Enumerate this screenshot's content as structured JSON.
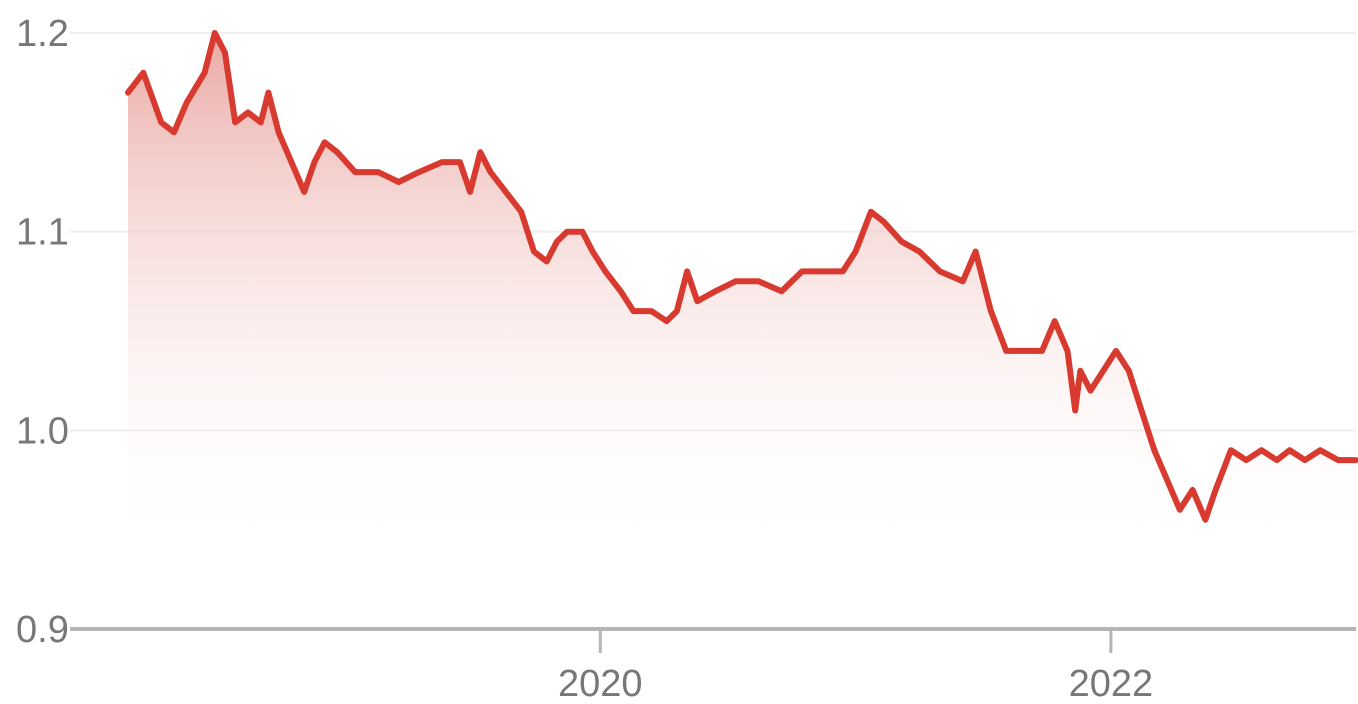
{
  "chart_data": {
    "type": "area",
    "title": "",
    "xlabel": "",
    "ylabel": "",
    "ylim": [
      0.9,
      1.2
    ],
    "xlim": [
      2018.15,
      2022.96
    ],
    "grid": true,
    "legend": "none",
    "y_ticks": [
      {
        "value": 1.2,
        "label": "1.2"
      },
      {
        "value": 1.1,
        "label": "1.1"
      },
      {
        "value": 1.0,
        "label": "1.0"
      },
      {
        "value": 0.9,
        "label": "0.9"
      }
    ],
    "x_ticks": [
      {
        "value": 2020,
        "label": "2020"
      },
      {
        "value": 2022,
        "label": "2022"
      }
    ],
    "colors": {
      "line": "#d93a30",
      "fill_top": "#e9a5a0",
      "fill_bottom": "#ffffff",
      "grid": "#eeeeee",
      "axis": "#b5b5b5",
      "tick_label": "#777777"
    },
    "series": [
      {
        "points": [
          [
            2018.15,
            1.17
          ],
          [
            2018.21,
            1.18
          ],
          [
            2018.28,
            1.155
          ],
          [
            2018.33,
            1.15
          ],
          [
            2018.38,
            1.165
          ],
          [
            2018.45,
            1.18
          ],
          [
            2018.49,
            1.2
          ],
          [
            2018.53,
            1.19
          ],
          [
            2018.57,
            1.155
          ],
          [
            2018.62,
            1.16
          ],
          [
            2018.67,
            1.155
          ],
          [
            2018.7,
            1.17
          ],
          [
            2018.74,
            1.15
          ],
          [
            2018.79,
            1.135
          ],
          [
            2018.84,
            1.12
          ],
          [
            2018.88,
            1.135
          ],
          [
            2018.92,
            1.145
          ],
          [
            2018.97,
            1.14
          ],
          [
            2019.04,
            1.13
          ],
          [
            2019.13,
            1.13
          ],
          [
            2019.21,
            1.125
          ],
          [
            2019.29,
            1.13
          ],
          [
            2019.38,
            1.135
          ],
          [
            2019.45,
            1.135
          ],
          [
            2019.49,
            1.12
          ],
          [
            2019.53,
            1.14
          ],
          [
            2019.57,
            1.13
          ],
          [
            2019.63,
            1.12
          ],
          [
            2019.69,
            1.11
          ],
          [
            2019.74,
            1.09
          ],
          [
            2019.79,
            1.085
          ],
          [
            2019.83,
            1.095
          ],
          [
            2019.87,
            1.1
          ],
          [
            2019.93,
            1.1
          ],
          [
            2019.97,
            1.09
          ],
          [
            2020.02,
            1.08
          ],
          [
            2020.08,
            1.07
          ],
          [
            2020.13,
            1.06
          ],
          [
            2020.2,
            1.06
          ],
          [
            2020.26,
            1.055
          ],
          [
            2020.3,
            1.06
          ],
          [
            2020.34,
            1.08
          ],
          [
            2020.38,
            1.065
          ],
          [
            2020.45,
            1.07
          ],
          [
            2020.53,
            1.075
          ],
          [
            2020.62,
            1.075
          ],
          [
            2020.71,
            1.07
          ],
          [
            2020.79,
            1.08
          ],
          [
            2020.86,
            1.08
          ],
          [
            2020.95,
            1.08
          ],
          [
            2021.0,
            1.09
          ],
          [
            2021.06,
            1.11
          ],
          [
            2021.11,
            1.105
          ],
          [
            2021.18,
            1.095
          ],
          [
            2021.25,
            1.09
          ],
          [
            2021.33,
            1.08
          ],
          [
            2021.42,
            1.075
          ],
          [
            2021.47,
            1.09
          ],
          [
            2021.53,
            1.06
          ],
          [
            2021.59,
            1.04
          ],
          [
            2021.65,
            1.04
          ],
          [
            2021.73,
            1.04
          ],
          [
            2021.78,
            1.055
          ],
          [
            2021.83,
            1.04
          ],
          [
            2021.86,
            1.01
          ],
          [
            2021.88,
            1.03
          ],
          [
            2021.92,
            1.02
          ],
          [
            2021.97,
            1.03
          ],
          [
            2022.02,
            1.04
          ],
          [
            2022.07,
            1.03
          ],
          [
            2022.12,
            1.01
          ],
          [
            2022.17,
            0.99
          ],
          [
            2022.22,
            0.975
          ],
          [
            2022.27,
            0.96
          ],
          [
            2022.32,
            0.97
          ],
          [
            2022.37,
            0.955
          ],
          [
            2022.41,
            0.97
          ],
          [
            2022.47,
            0.99
          ],
          [
            2022.53,
            0.985
          ],
          [
            2022.59,
            0.99
          ],
          [
            2022.65,
            0.985
          ],
          [
            2022.7,
            0.99
          ],
          [
            2022.76,
            0.985
          ],
          [
            2022.82,
            0.99
          ],
          [
            2022.89,
            0.985
          ],
          [
            2022.96,
            0.985
          ]
        ]
      }
    ]
  }
}
